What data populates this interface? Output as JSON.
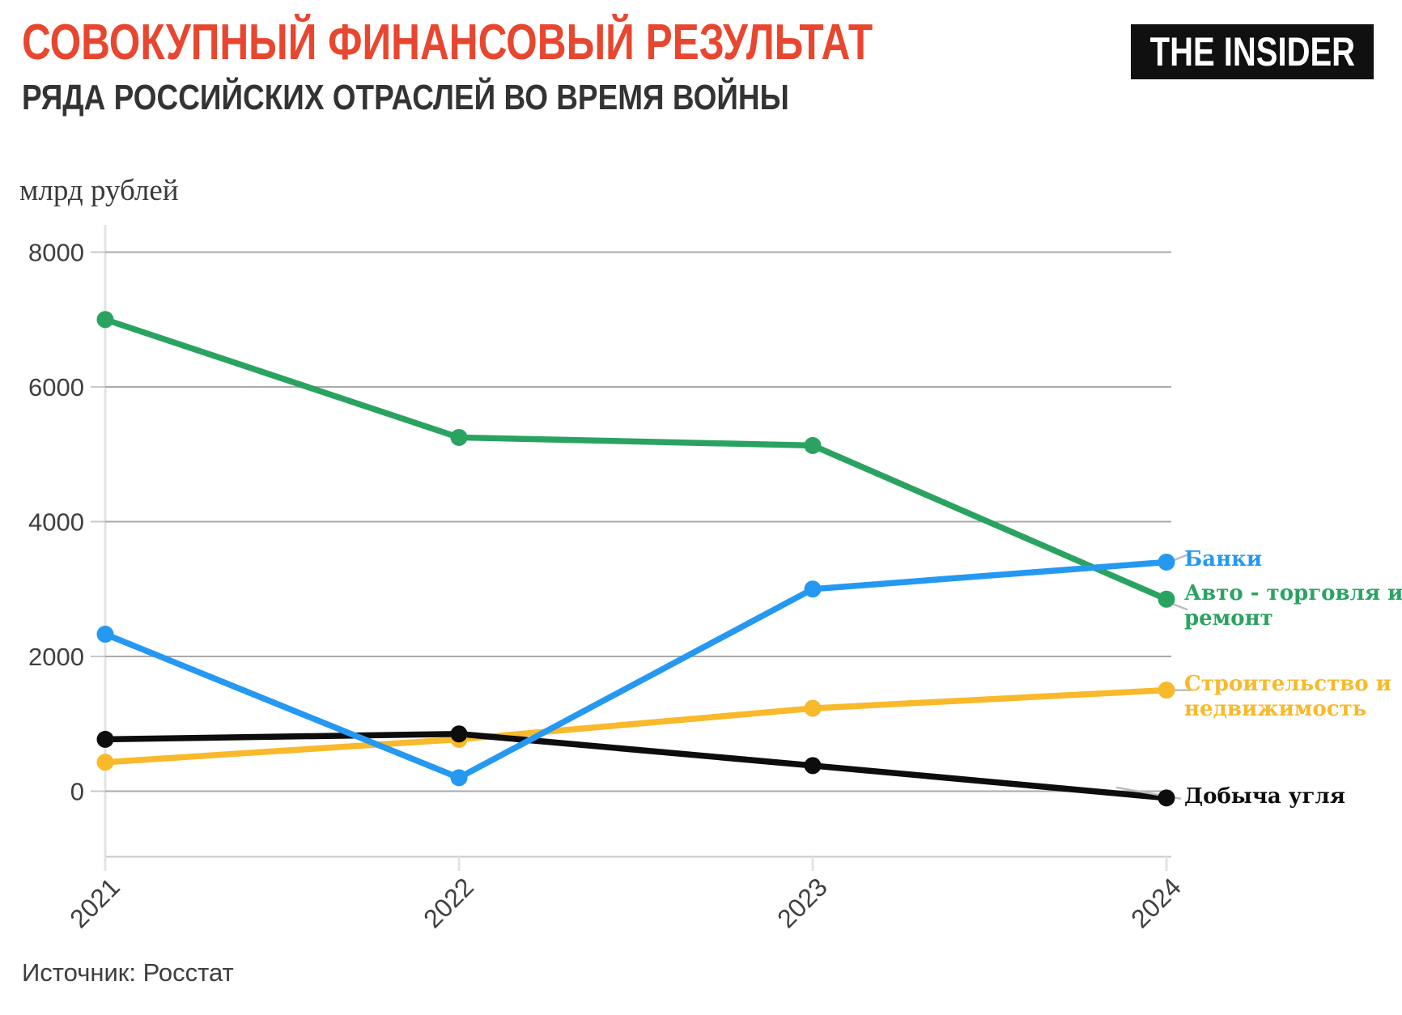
{
  "header": {
    "title": "СОВОКУПНЫЙ ФИНАНСОВЫЙ РЕЗУЛЬТАТ",
    "subtitle": "РЯДА РОССИЙСКИХ ОТРАСЛЕЙ ВО ВРЕМЯ ВОЙНЫ",
    "logo": "THE INSIDER"
  },
  "chart_data": {
    "type": "line",
    "title": "СОВОКУПНЫЙ ФИНАНСОВЫЙ РЕЗУЛЬТАТ РЯДА РОССИЙСКИХ ОТРАСЛЕЙ ВО ВРЕМЯ ВОЙНЫ",
    "ylabel": "млрд рублей",
    "xlabel": "",
    "x_categories": [
      "2021",
      "2022",
      "2023",
      "2024"
    ],
    "y_ticks": [
      0,
      2000,
      4000,
      6000,
      8000
    ],
    "ylim": [
      -970,
      8400
    ],
    "grid": true,
    "legend_position": "right-edge-labels",
    "series": [
      {
        "name": "Банки",
        "color": "#2598f2",
        "values": [
          2330,
          200,
          3000,
          3400
        ]
      },
      {
        "name": "Авто - торговля и ремонт",
        "color": "#2aa361",
        "values": [
          7000,
          5250,
          5130,
          2850
        ]
      },
      {
        "name": "Строительство и недвижимость",
        "color": "#f8b92b",
        "values": [
          430,
          770,
          1230,
          1500
        ]
      },
      {
        "name": "Добыча угля",
        "color": "#0d0d0d",
        "values": [
          770,
          850,
          380,
          -100
        ]
      }
    ]
  },
  "source": "Источник: Росстат",
  "colors": {
    "title_accent": "#e8462f",
    "subtitle_text": "#333333",
    "grid_line": "#a9a9a9",
    "axis_line": "#c8c8c8",
    "guide_line": "#e3e3e3",
    "axis_text": "#3f3f3f",
    "leader_line": "#bdbdbd",
    "logo_bg": "#101010",
    "logo_text": "#ffffff"
  }
}
